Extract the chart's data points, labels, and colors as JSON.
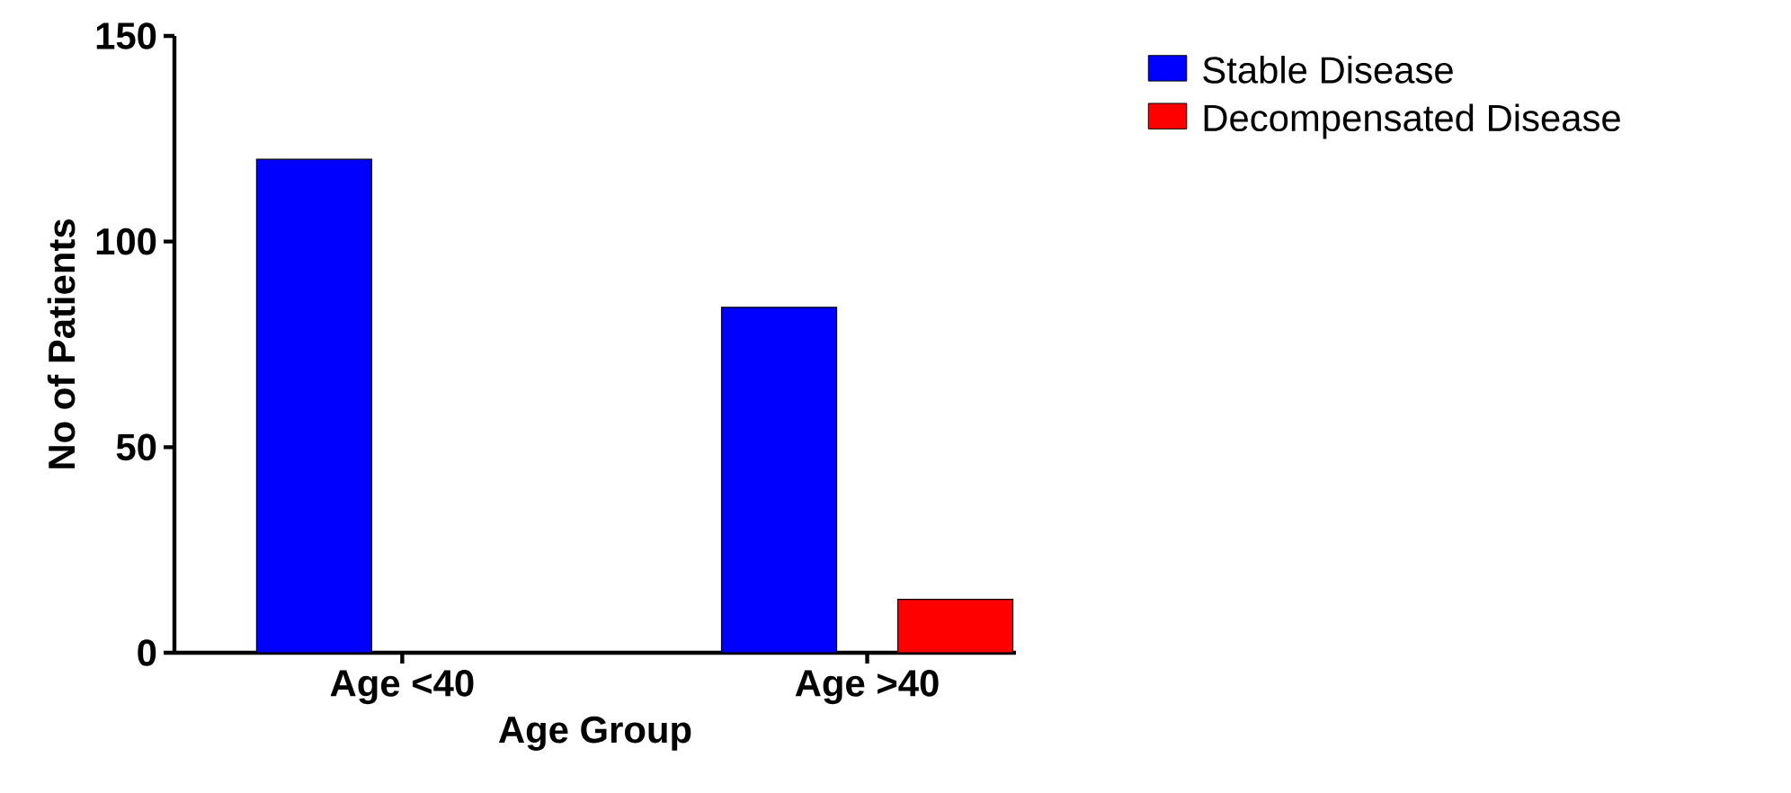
{
  "chart_data": {
    "type": "bar",
    "xlabel": "Age Group",
    "ylabel": "No of Patients",
    "categories": [
      "Age <40",
      "Age >40"
    ],
    "series": [
      {
        "name": "Stable Disease",
        "color": "#0000ff",
        "values": [
          120,
          84
        ]
      },
      {
        "name": "Decompensated Disease",
        "color": "#ff0000",
        "values": [
          null,
          13
        ]
      }
    ],
    "ylim": [
      0,
      150
    ],
    "yticks": [
      0,
      50,
      100,
      150
    ],
    "legend": "top right",
    "grid": false
  }
}
